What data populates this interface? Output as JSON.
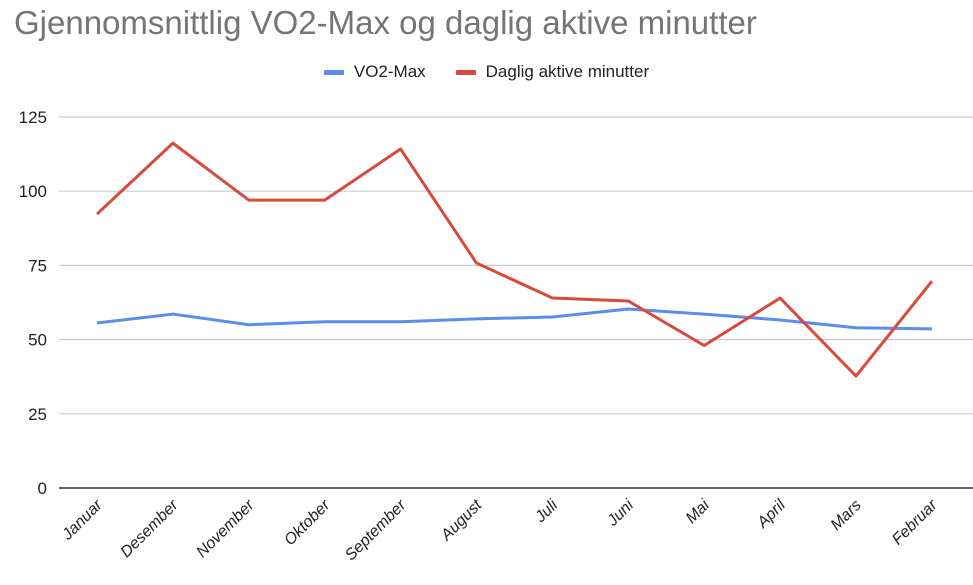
{
  "chart_data": {
    "type": "line",
    "title": "Gjennomsnittlig VO2-Max og daglig aktive minutter",
    "xlabel": "",
    "ylabel": "",
    "categories": [
      "Januar",
      "Desember",
      "November",
      "Oktober",
      "September",
      "August",
      "Juli",
      "Juni",
      "Mai",
      "April",
      "Mars",
      "Februar"
    ],
    "series": [
      {
        "name": "VO2-Max",
        "color": "#5A8DEE",
        "values": [
          55.6,
          58.6,
          55,
          56,
          56,
          57,
          57.6,
          60.3,
          58.6,
          56.6,
          54,
          53.6
        ]
      },
      {
        "name": "Daglig aktive minutter",
        "color": "#D84B3C",
        "values": [
          92.3,
          116.2,
          97,
          97,
          114.2,
          75.8,
          64,
          63,
          48,
          64,
          37.7,
          69.7
        ]
      }
    ],
    "ylim": [
      0,
      125
    ],
    "yticks": [
      "0",
      "25",
      "50",
      "75",
      "100",
      "125"
    ],
    "grid": true,
    "legend_position": "top"
  }
}
